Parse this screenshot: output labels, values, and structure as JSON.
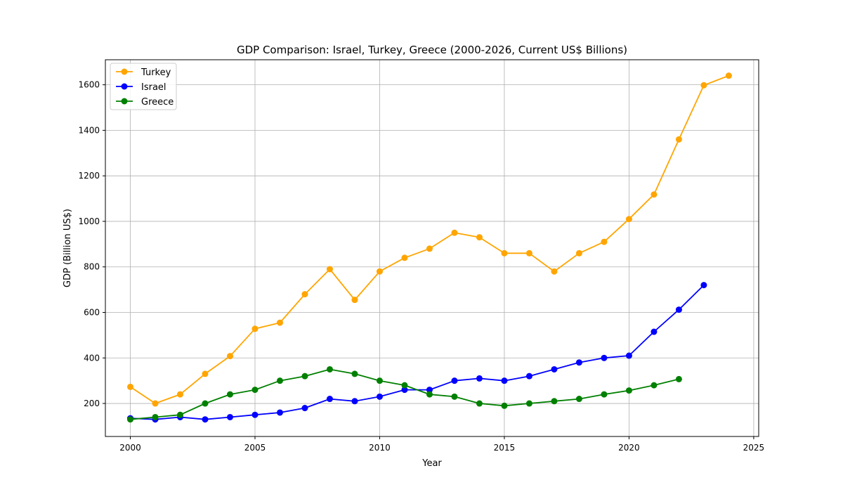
{
  "chart_data": {
    "type": "line",
    "title": "GDP Comparison: Israel, Turkey, Greece (2000-2026, Current US$ Billions)",
    "xlabel": "Year",
    "ylabel": "GDP (Billion US$)",
    "xlim": [
      1999,
      2025.2
    ],
    "ylim": [
      55,
      1710
    ],
    "x_ticks": [
      2000,
      2005,
      2010,
      2015,
      2020,
      2025
    ],
    "y_ticks": [
      200,
      400,
      600,
      800,
      1000,
      1200,
      1400,
      1600
    ],
    "grid": true,
    "legend_position": "top-left",
    "series": [
      {
        "name": "Turkey",
        "color": "#FFA500",
        "x": [
          2000,
          2001,
          2002,
          2003,
          2004,
          2005,
          2006,
          2007,
          2008,
          2009,
          2010,
          2011,
          2012,
          2013,
          2014,
          2015,
          2016,
          2017,
          2018,
          2019,
          2020,
          2021,
          2022,
          2023,
          2024
        ],
        "values": [
          273,
          200,
          240,
          330,
          408,
          528,
          555,
          680,
          790,
          655,
          780,
          840,
          880,
          950,
          930,
          860,
          860,
          780,
          860,
          910,
          1010,
          1118,
          1360,
          1598,
          1640
        ]
      },
      {
        "name": "Israel",
        "color": "#0000FF",
        "x": [
          2000,
          2001,
          2002,
          2003,
          2004,
          2005,
          2006,
          2007,
          2008,
          2009,
          2010,
          2011,
          2012,
          2013,
          2014,
          2015,
          2016,
          2017,
          2018,
          2019,
          2020,
          2021,
          2022,
          2023
        ],
        "values": [
          135,
          130,
          140,
          130,
          140,
          150,
          160,
          180,
          220,
          210,
          230,
          260,
          260,
          300,
          310,
          300,
          320,
          350,
          380,
          400,
          410,
          515,
          612,
          720
        ]
      },
      {
        "name": "Greece",
        "color": "#008000",
        "x": [
          2000,
          2001,
          2002,
          2003,
          2004,
          2005,
          2006,
          2007,
          2008,
          2009,
          2010,
          2011,
          2012,
          2013,
          2014,
          2015,
          2016,
          2017,
          2018,
          2019,
          2020,
          2021,
          2022
        ],
        "values": [
          130,
          140,
          150,
          200,
          240,
          260,
          300,
          320,
          350,
          330,
          300,
          280,
          240,
          230,
          200,
          190,
          200,
          210,
          220,
          240,
          257,
          280,
          307
        ]
      }
    ]
  }
}
